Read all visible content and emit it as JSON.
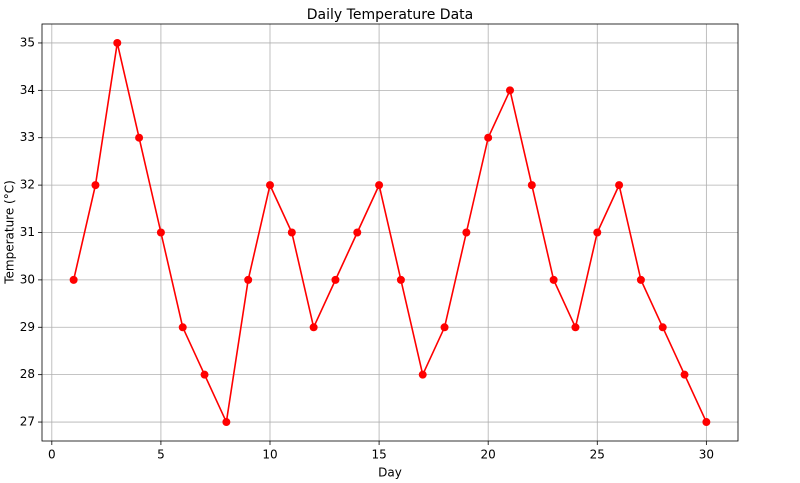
{
  "chart_data": {
    "type": "line",
    "title": "Daily Temperature Data",
    "x_label": "Day",
    "y_label": "Temperature (°C)",
    "x": [
      1,
      2,
      3,
      4,
      5,
      6,
      7,
      8,
      9,
      10,
      11,
      12,
      13,
      14,
      15,
      16,
      17,
      18,
      19,
      20,
      21,
      22,
      23,
      24,
      25,
      26,
      27,
      28,
      29,
      30
    ],
    "series": [
      {
        "name": "Temperature",
        "color": "#ff0000",
        "values": [
          30,
          32,
          35,
          33,
          31,
          29,
          28,
          27,
          30,
          32,
          31,
          29,
          30,
          31,
          32,
          30,
          28,
          29,
          31,
          33,
          34,
          32,
          30,
          29,
          31,
          32,
          30,
          29,
          28,
          27
        ]
      }
    ],
    "xlim": [
      -0.45,
      31.45
    ],
    "xticks": [
      0,
      5,
      10,
      15,
      20,
      25,
      30
    ],
    "ylim": [
      26.6,
      35.4
    ],
    "yticks": [
      27,
      28,
      29,
      30,
      31,
      32,
      33,
      34,
      35
    ],
    "grid": true,
    "marker": "circle"
  }
}
